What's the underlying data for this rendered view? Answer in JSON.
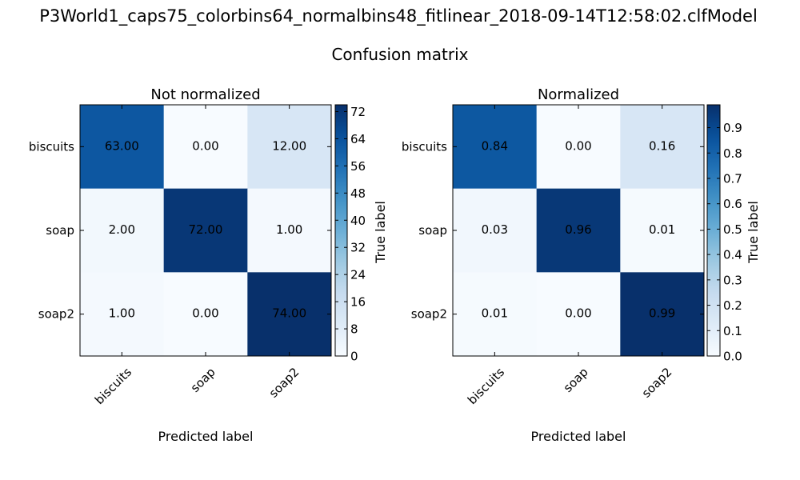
{
  "figure": {
    "suptitle": "P3World1_caps75_colorbins64_normalbins48_fitlinear_2018-09-14T12:58:02.clfModel",
    "title": "Confusion matrix"
  },
  "chart_data": [
    {
      "type": "heatmap",
      "title": "Not normalized",
      "xlabel": "Predicted label",
      "ylabel": "True label",
      "row_labels": [
        "biscuits",
        "soap",
        "soap2"
      ],
      "col_labels": [
        "biscuits",
        "soap",
        "soap2"
      ],
      "values": [
        [
          63,
          0,
          12
        ],
        [
          2,
          72,
          1
        ],
        [
          1,
          0,
          74
        ]
      ],
      "cell_text": [
        [
          "63.00",
          "0.00",
          "12.00"
        ],
        [
          "2.00",
          "72.00",
          "1.00"
        ],
        [
          "1.00",
          "0.00",
          "74.00"
        ]
      ],
      "colormap": "Blues",
      "colorbar": {
        "min": 0,
        "max": 74,
        "ticks": [
          0,
          8,
          16,
          24,
          32,
          40,
          48,
          56,
          64,
          72
        ],
        "tick_labels": [
          "0",
          "8",
          "16",
          "24",
          "32",
          "40",
          "48",
          "56",
          "64",
          "72"
        ],
        "label": "True label"
      }
    },
    {
      "type": "heatmap",
      "title": "Normalized",
      "xlabel": "Predicted label",
      "ylabel": "True label",
      "row_labels": [
        "biscuits",
        "soap",
        "soap2"
      ],
      "col_labels": [
        "biscuits",
        "soap",
        "soap2"
      ],
      "values": [
        [
          0.84,
          0.0,
          0.16
        ],
        [
          0.03,
          0.96,
          0.01
        ],
        [
          0.01,
          0.0,
          0.99
        ]
      ],
      "cell_text": [
        [
          "0.84",
          "0.00",
          "0.16"
        ],
        [
          "0.03",
          "0.96",
          "0.01"
        ],
        [
          "0.01",
          "0.00",
          "0.99"
        ]
      ],
      "colormap": "Blues",
      "colorbar": {
        "min": 0,
        "max": 0.99,
        "ticks": [
          0,
          0.1,
          0.2,
          0.3,
          0.4,
          0.5,
          0.6,
          0.7,
          0.8,
          0.9
        ],
        "tick_labels": [
          "0.0",
          "0.1",
          "0.2",
          "0.3",
          "0.4",
          "0.5",
          "0.6",
          "0.7",
          "0.8",
          "0.9"
        ],
        "label": "True label"
      }
    }
  ]
}
